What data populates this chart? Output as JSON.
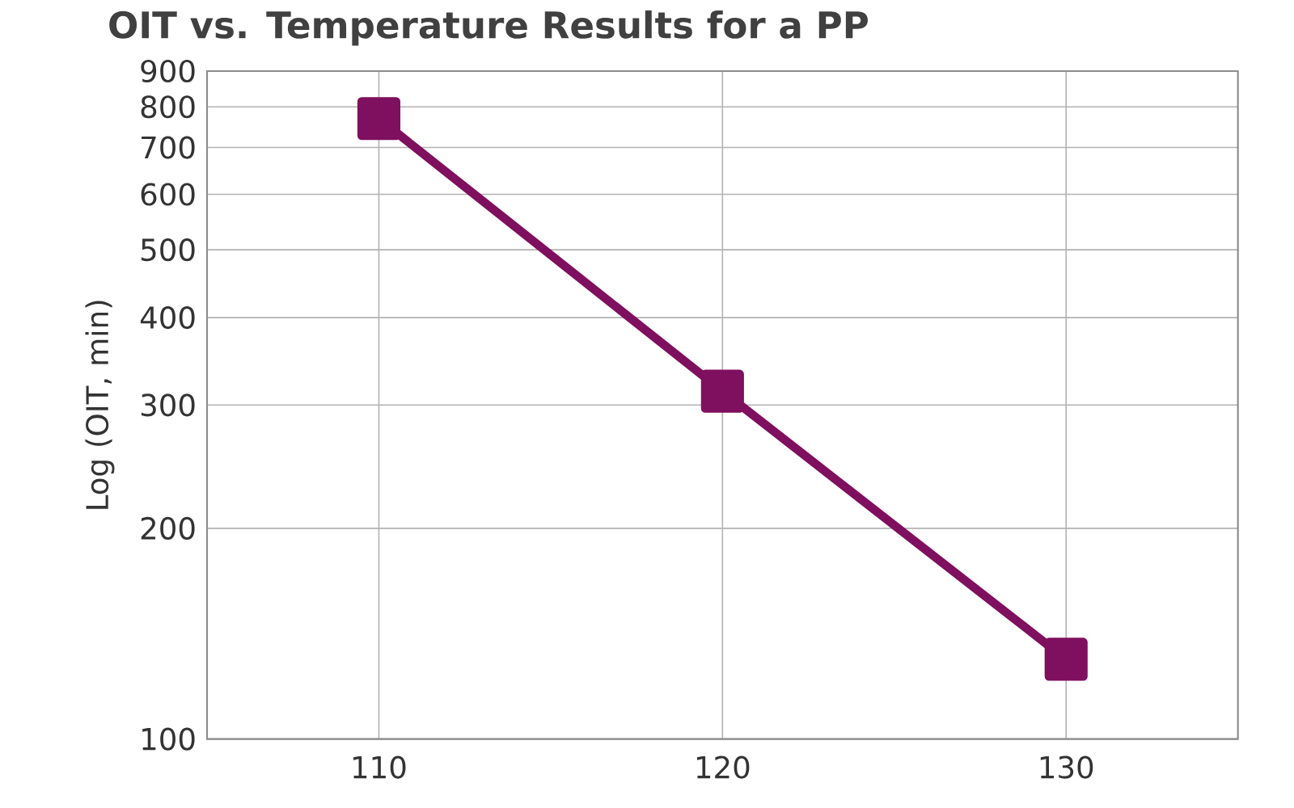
{
  "chart_data": {
    "type": "line",
    "title": "OIT vs. Temperature Results for a PP",
    "ylabel": "Log (OIT, min)",
    "x": [
      110,
      120,
      130
    ],
    "series": [
      {
        "color": "#7f0f5f",
        "values": [
          770,
          314,
          130
        ]
      }
    ],
    "xlim": [
      105,
      135
    ],
    "xticks": [
      110,
      120,
      130
    ],
    "ylim": [
      100,
      900
    ],
    "yticks": [
      100,
      200,
      300,
      400,
      500,
      600,
      700,
      800,
      900
    ],
    "log": "y",
    "grid": true,
    "marker": "square",
    "line_style": "solid"
  }
}
